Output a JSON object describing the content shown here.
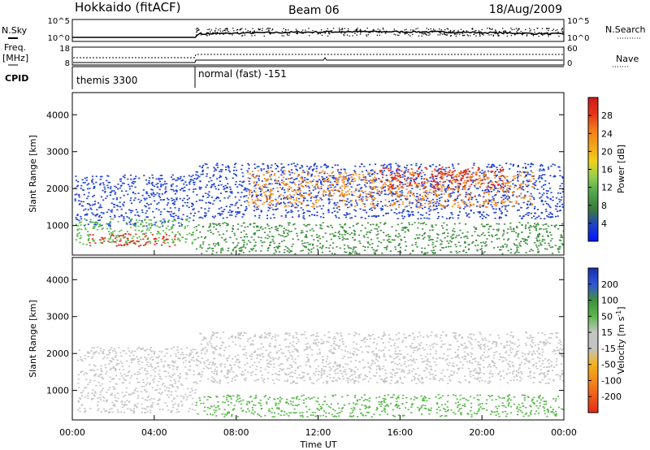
{
  "header": {
    "station": "Hokkaido (fitACF)",
    "beam": "Beam 06",
    "date": "18/Aug/2009"
  },
  "left_labels": {
    "nsky": "N.Sky",
    "freq_line1": "Freq.",
    "freq_line2": "[MHz]",
    "cpid": "CPID"
  },
  "right_labels": {
    "nsearch": "N.Search",
    "nave": "Nave"
  },
  "noise_ticks": {
    "top": "10^5",
    "bottom": "10^0"
  },
  "freq_ticks": {
    "top": "18",
    "bottom": "8"
  },
  "nave_ticks": {
    "top": "60",
    "bottom": "0"
  },
  "cpid_modes": [
    {
      "label": "themis 3300",
      "start_hour": 0,
      "end_hour": 6
    },
    {
      "label": "normal (fast) -151",
      "start_hour": 6,
      "end_hour": 24
    }
  ],
  "xaxis": {
    "label": "Time UT",
    "ticks": [
      "00:00",
      "04:00",
      "08:00",
      "12:00",
      "16:00",
      "20:00",
      "00:00"
    ]
  },
  "colors": {
    "blue": "#1f3fd8",
    "dkgreen": "#3f8f3f",
    "green": "#5ab84b",
    "yellow": "#f2c21b",
    "orange": "#f28a1b",
    "red": "#e22b17",
    "gray": "#c4c4c4",
    "dkblue": "#1a2fae",
    "olive": "#c9b96a",
    "tan": "#d6a456"
  },
  "chart_data": [
    {
      "type": "heatmap",
      "name_label": "Power",
      "ylabel": "Slant Range [km]",
      "ylim": [
        200,
        4600
      ],
      "y_ticks": [
        1000,
        2000,
        3000,
        4000
      ],
      "colorbar_label": "Power [dB]",
      "colorbar_range": [
        0,
        32
      ],
      "colorbar_ticks": [
        "4",
        "8",
        "12",
        "16",
        "20",
        "24",
        "28"
      ],
      "colorbar_colors": [
        "#0015ff",
        "#2040c8",
        "#3b7a3b",
        "#4fa24f",
        "#8fcf4f",
        "#f2d21b",
        "#f2a21b",
        "#f27a1b",
        "#e4341a",
        "#d21a1a"
      ],
      "echo_bands": [
        {
          "t0": 0.1,
          "t1": 6.0,
          "r0": 1000,
          "r1": 2400,
          "level": "blue"
        },
        {
          "t0": 0.1,
          "t1": 6.0,
          "r0": 500,
          "r1": 1200,
          "level": "green"
        },
        {
          "t0": 0.8,
          "t1": 5.0,
          "r0": 450,
          "r1": 800,
          "level": "red"
        },
        {
          "t0": 6.0,
          "t1": 24.0,
          "r0": 1200,
          "r1": 2700,
          "level": "blue"
        },
        {
          "t0": 8.5,
          "t1": 22.5,
          "r0": 1500,
          "r1": 2500,
          "level": "orange"
        },
        {
          "t0": 15.0,
          "t1": 21.0,
          "r0": 2000,
          "r1": 2600,
          "level": "red"
        },
        {
          "t0": 6.0,
          "t1": 24.0,
          "r0": 250,
          "r1": 1100,
          "level": "dkgreen"
        }
      ]
    },
    {
      "type": "heatmap",
      "name_label": "Velocity",
      "ylabel": "Slant Range [km]",
      "ylim": [
        200,
        4600
      ],
      "y_ticks": [
        1000,
        2000,
        3000,
        4000
      ],
      "colorbar_label": "Velocity [m s^-1]",
      "colorbar_range": [
        -250,
        250
      ],
      "colorbar_ticks": [
        "200",
        "100",
        "50",
        "15",
        "-15",
        "-50",
        "-100",
        "-200"
      ],
      "colorbar_colors": [
        "#1a2fae",
        "#2f56d8",
        "#3f8f3f",
        "#5ab84b",
        "#c4c4c4",
        "#c4c4c4",
        "#f2b21b",
        "#f28a1b",
        "#ee5a1b",
        "#e22b17"
      ],
      "echo_bands": [
        {
          "t0": 0.2,
          "t1": 6.0,
          "r0": 400,
          "r1": 2200,
          "level": "gray"
        },
        {
          "t0": 6.0,
          "t1": 24.0,
          "r0": 1200,
          "r1": 2600,
          "level": "gray"
        },
        {
          "t0": 6.0,
          "t1": 24.0,
          "r0": 300,
          "r1": 900,
          "level": "green"
        }
      ]
    }
  ]
}
